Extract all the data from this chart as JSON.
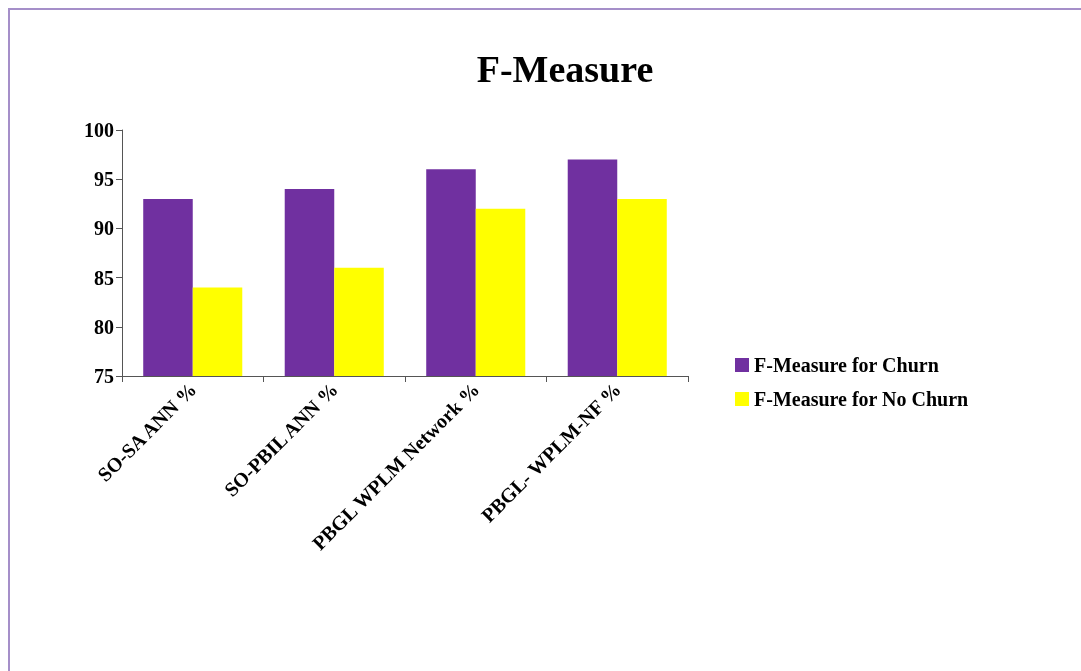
{
  "chart_data": {
    "type": "bar",
    "title": "F-Measure",
    "categories": [
      "SO-SA ANN %",
      "SO-PBIL ANN %",
      "PBGL WPLM Network %",
      "PBGL- WPLM-NF %"
    ],
    "series": [
      {
        "name": "F-Measure for Churn",
        "color": "#7030a0",
        "values": [
          93,
          94,
          96,
          97
        ]
      },
      {
        "name": "F-Measure for No Churn",
        "color": "#ffff00",
        "values": [
          84,
          86,
          92,
          93
        ]
      }
    ],
    "ylim": [
      75,
      100
    ],
    "yticks": [
      75,
      80,
      85,
      90,
      95,
      100
    ],
    "grid": false,
    "legend": "right"
  }
}
